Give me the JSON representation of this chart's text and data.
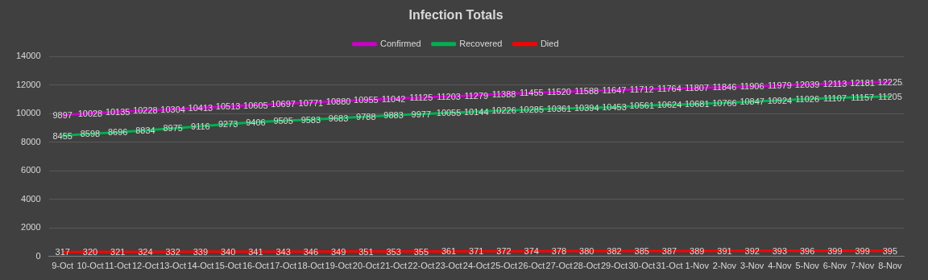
{
  "chart_data": {
    "type": "line",
    "title": "Infection Totals",
    "categories": [
      "9-Oct",
      "10-Oct",
      "11-Oct",
      "12-Oct",
      "13-Oct",
      "14-Oct",
      "15-Oct",
      "16-Oct",
      "17-Oct",
      "18-Oct",
      "19-Oct",
      "20-Oct",
      "21-Oct",
      "22-Oct",
      "23-Oct",
      "24-Oct",
      "25-Oct",
      "26-Oct",
      "27-Oct",
      "28-Oct",
      "29-Oct",
      "30-Oct",
      "31-Oct",
      "1-Nov",
      "2-Nov",
      "3-Nov",
      "4-Nov",
      "5-Nov",
      "6-Nov",
      "7-Nov",
      "8-Nov"
    ],
    "series": [
      {
        "name": "Confirmed",
        "color": "#cc00cc",
        "values": [
          9897,
          10028,
          10135,
          10228,
          10304,
          10413,
          10513,
          10605,
          10697,
          10771,
          10880,
          10955,
          11042,
          11125,
          11203,
          11279,
          11388,
          11455,
          11520,
          11588,
          11647,
          11712,
          11764,
          11807,
          11846,
          11906,
          11979,
          12039,
          12113,
          12181,
          12225
        ]
      },
      {
        "name": "Recovered",
        "color": "#00b050",
        "values": [
          8455,
          8598,
          8696,
          8834,
          8975,
          9116,
          9273,
          9406,
          9505,
          9583,
          9683,
          9788,
          9883,
          9977,
          10055,
          10144,
          10226,
          10285,
          10361,
          10394,
          10453,
          10561,
          10624,
          10681,
          10766,
          10847,
          10924,
          11026,
          11107,
          11157,
          11205
        ]
      },
      {
        "name": "Died",
        "color": "#ff0000",
        "values": [
          317,
          320,
          321,
          324,
          332,
          339,
          340,
          341,
          343,
          346,
          349,
          351,
          353,
          355,
          361,
          371,
          372,
          374,
          378,
          380,
          382,
          385,
          387,
          389,
          391,
          392,
          393,
          396,
          399,
          399,
          395
        ]
      }
    ],
    "ylim": [
      0,
      14000
    ],
    "yticks": [
      0,
      2000,
      4000,
      6000,
      8000,
      10000,
      12000,
      14000
    ],
    "grid": "y",
    "legend": "top",
    "marker": "none",
    "line_style": "solid",
    "data_labels": true
  }
}
